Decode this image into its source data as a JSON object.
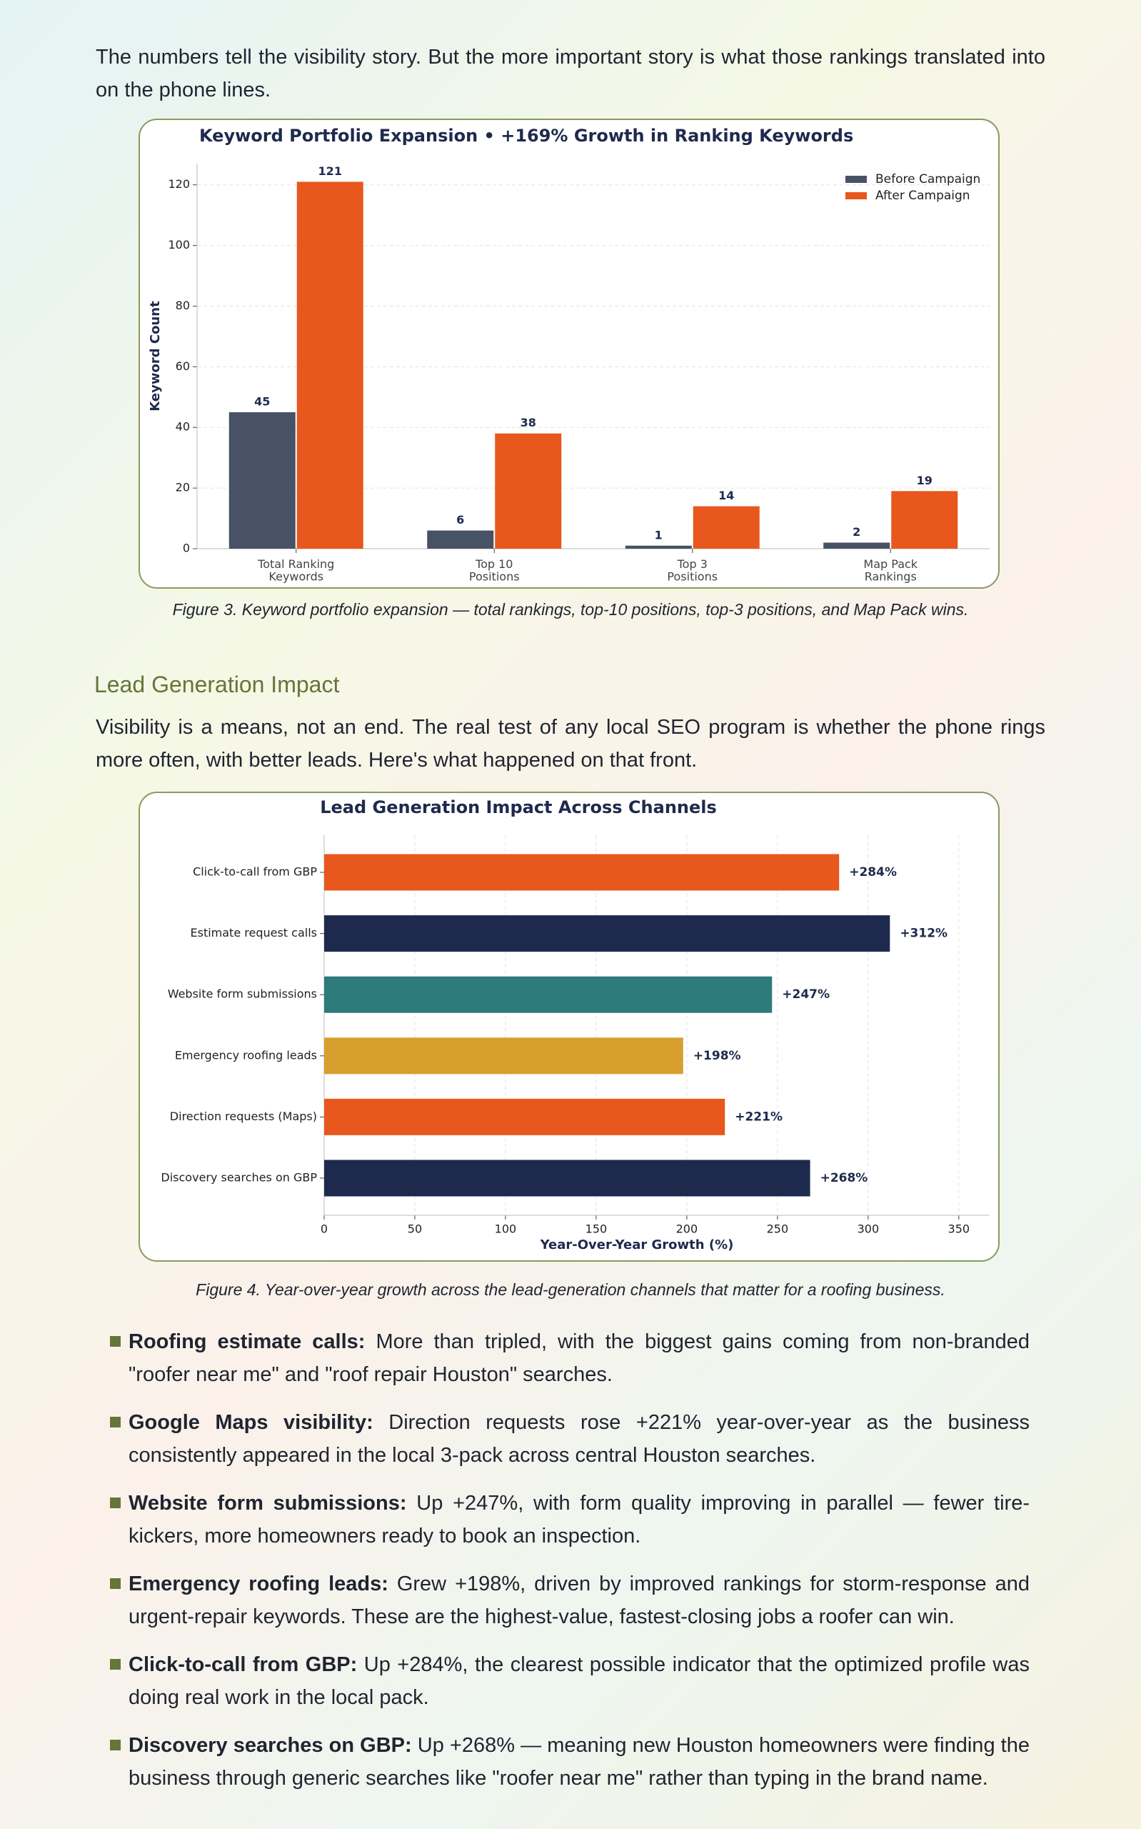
{
  "intro": "The numbers tell the visibility story. But the more important story is what those rankings translated into on the phone lines.",
  "chart_data": [
    {
      "type": "bar",
      "title": "Keyword Portfolio Expansion  •  +169% Growth in Ranking Keywords",
      "categories": [
        "Total Ranking\nKeywords",
        "Top 10\nPositions",
        "Top 3\nPositions",
        "Map Pack\nRankings"
      ],
      "series": [
        {
          "name": "Before Campaign",
          "color": "#475266",
          "values": [
            45,
            6,
            1,
            2
          ]
        },
        {
          "name": "After Campaign",
          "color": "#e8571e",
          "values": [
            121,
            38,
            14,
            19
          ]
        }
      ],
      "ylabel": "Keyword Count",
      "ylim": [
        0,
        127
      ],
      "yticks": [
        0,
        20,
        40,
        60,
        80,
        100,
        120
      ],
      "grid": true,
      "legend": "upper right",
      "caption": "Figure 3. Keyword portfolio expansion — total rankings, top-10 positions, top-3 positions, and Map Pack wins."
    },
    {
      "type": "barh",
      "title": "Lead Generation Impact Across Channels",
      "categories": [
        "Click-to-call from GBP",
        "Estimate request calls",
        "Website form submissions",
        "Emergency roofing leads",
        "Direction requests (Maps)",
        "Discovery searches on GBP"
      ],
      "values": [
        284,
        312,
        247,
        198,
        221,
        268
      ],
      "value_labels": [
        "+284%",
        "+312%",
        "+247%",
        "+198%",
        "+221%",
        "+268%"
      ],
      "colors": [
        "#e8571e",
        "#1e2a4d",
        "#2d7b7b",
        "#d89e2e",
        "#e8571e",
        "#1e2a4d"
      ],
      "xlabel": "Year-Over-Year Growth (%)",
      "xlim": [
        0,
        367
      ],
      "xticks": [
        0,
        50,
        100,
        150,
        200,
        250,
        300,
        350
      ],
      "grid": true,
      "caption": "Figure 4. Year-over-year growth across the lead-generation channels that matter for a roofing business."
    }
  ],
  "heading": "Lead Generation Impact",
  "paragraph": "Visibility is a means, not an end. The real test of any local SEO program is whether the phone rings more often, with better leads. Here's what happened on that front.",
  "bullets": [
    {
      "label": "Roofing estimate calls:",
      "text": " More than tripled, with the biggest gains coming from non-branded \"roofer near me\" and \"roof repair Houston\" searches."
    },
    {
      "label": "Google Maps visibility:",
      "text": " Direction requests rose +221% year-over-year as the business consistently appeared in the local 3-pack across central Houston searches."
    },
    {
      "label": "Website form submissions:",
      "text": " Up +247%, with form quality improving in parallel — fewer tire-kickers, more homeowners ready to book an inspection."
    },
    {
      "label": "Emergency roofing leads:",
      "text": " Grew +198%, driven by improved rankings for storm-response and urgent-repair keywords. These are the highest-value, fastest-closing jobs a roofer can win."
    },
    {
      "label": "Click-to-call from GBP:",
      "text": " Up +284%, the clearest possible indicator that the optimized profile was doing real work in the local pack."
    },
    {
      "label": "Discovery searches on GBP:",
      "text": " Up +268% — meaning new Houston homeowners were finding the business through generic searches like \"roofer near me\" rather than typing in the brand name."
    }
  ]
}
